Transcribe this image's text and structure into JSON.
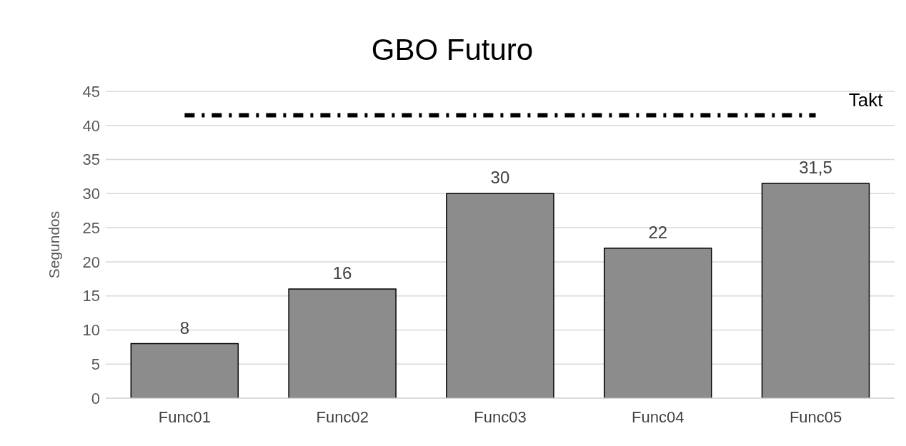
{
  "chart_data": {
    "type": "bar",
    "title": "GBO Futuro",
    "ylabel": "Segundos",
    "categories": [
      "Func01",
      "Func02",
      "Func03",
      "Func04",
      "Func05"
    ],
    "values": [
      8,
      16,
      30,
      22,
      31.5
    ],
    "value_labels": [
      "8",
      "16",
      "30",
      "22",
      "31,5"
    ],
    "color": "#8c8c8c",
    "ylim": [
      0,
      45
    ],
    "yticks": [
      0,
      5,
      10,
      15,
      20,
      25,
      30,
      35,
      40,
      45
    ],
    "grid": "y",
    "ref_lines": [
      {
        "axis": "y",
        "value": 41.5,
        "label": "Takt",
        "color": "#000000",
        "line_style": "dashdot"
      }
    ]
  }
}
